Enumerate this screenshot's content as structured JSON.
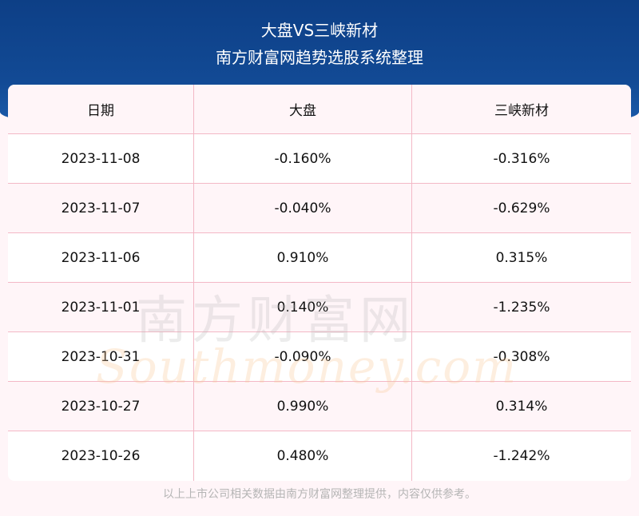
{
  "header": {
    "title": "大盘VS三峡新材",
    "subtitle": "南方财富网趋势选股系统整理"
  },
  "table": {
    "columns": [
      "日期",
      "大盘",
      "三峡新材"
    ],
    "rows": [
      [
        "2023-11-08",
        "-0.160%",
        "-0.316%"
      ],
      [
        "2023-11-07",
        "-0.040%",
        "-0.629%"
      ],
      [
        "2023-11-06",
        "0.910%",
        "0.315%"
      ],
      [
        "2023-11-01",
        "0.140%",
        "-1.235%"
      ],
      [
        "2023-10-31",
        "-0.090%",
        "-0.308%"
      ],
      [
        "2023-10-27",
        "0.990%",
        "0.314%"
      ],
      [
        "2023-10-26",
        "0.480%",
        "-1.242%"
      ]
    ]
  },
  "watermark": {
    "cn": "南方财富网",
    "en": "Southmoney.com"
  },
  "footer": "以上上市公司相关数据由南方财富网整理提供，内容仅供参考。",
  "colors": {
    "header_bg": "#124a95",
    "border": "#f3b8c6",
    "page_bg": "#fff5f8"
  }
}
